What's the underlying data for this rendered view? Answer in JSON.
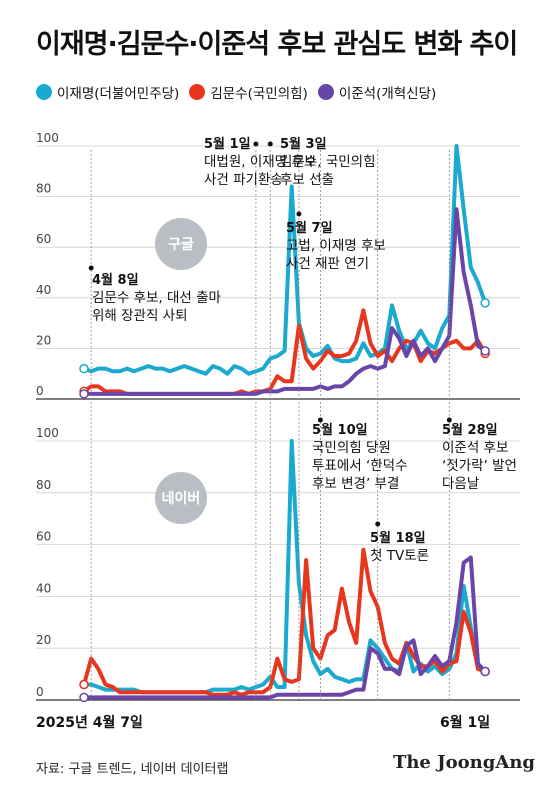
{
  "title": "이재명·김문수·이준석 후보 관심도 변화 추이",
  "legend": [
    {
      "label": "이재명(더불어민주당)",
      "color": "#1aa9cf"
    },
    {
      "label": "김문수(국민의힘)",
      "color": "#e8361d"
    },
    {
      "label": "이준석(개혁신당)",
      "color": "#6a45a8"
    }
  ],
  "x_start_label": "2025년 4월 7일",
  "x_end_label": "6월 1일",
  "footer": "자료: 구글 트렌드, 네이버 데이터랩",
  "logo": "The JoongAng",
  "chart_data": [
    {
      "type": "line",
      "panel_label": "구글",
      "x_start": "2025-04-07",
      "x_end": "2025-06-01",
      "ylim": [
        0,
        100
      ],
      "yticks": [
        0,
        20,
        40,
        60,
        80,
        100
      ],
      "series": [
        {
          "name": "이재명(더불어민주당)",
          "color": "#1aa9cf",
          "values": [
            12,
            11,
            12,
            12,
            11,
            11,
            12,
            11,
            12,
            13,
            12,
            12,
            11,
            12,
            13,
            12,
            11,
            10,
            13,
            12,
            10,
            13,
            12,
            10,
            11,
            12,
            16,
            17,
            19,
            84,
            30,
            20,
            17,
            18,
            21,
            16,
            15,
            15,
            16,
            22,
            17,
            18,
            20,
            37,
            27,
            20,
            22,
            27,
            22,
            20,
            28,
            33,
            100,
            75,
            52,
            46,
            38
          ]
        },
        {
          "name": "김문수(국민의힘)",
          "color": "#e8361d",
          "values": [
            3,
            5,
            5,
            3,
            3,
            3,
            2,
            2,
            2,
            2,
            2,
            2,
            2,
            2,
            2,
            2,
            2,
            2,
            2,
            2,
            2,
            2,
            3,
            2,
            3,
            3,
            4,
            9,
            7,
            7,
            29,
            16,
            12,
            15,
            19,
            17,
            17,
            18,
            23,
            35,
            22,
            17,
            19,
            15,
            20,
            23,
            22,
            15,
            19,
            18,
            20,
            22,
            23,
            20,
            20,
            23,
            18
          ]
        },
        {
          "name": "이준석(개혁신당)",
          "color": "#6a45a8",
          "values": [
            2,
            2,
            2,
            2,
            2,
            2,
            2,
            2,
            2,
            2,
            2,
            2,
            2,
            2,
            2,
            2,
            2,
            2,
            2,
            2,
            2,
            2,
            2,
            2,
            2,
            3,
            3,
            3,
            4,
            4,
            4,
            4,
            4,
            5,
            4,
            5,
            5,
            7,
            10,
            12,
            13,
            12,
            13,
            28,
            24,
            17,
            23,
            17,
            20,
            15,
            20,
            25,
            75,
            50,
            37,
            21,
            19
          ]
        }
      ]
    },
    {
      "type": "line",
      "panel_label": "네이버",
      "x_start": "2025-04-07",
      "x_end": "2025-06-01",
      "ylim": [
        0,
        100
      ],
      "yticks": [
        0,
        20,
        40,
        60,
        80,
        100
      ],
      "series": [
        {
          "name": "이재명(더불어민주당)",
          "color": "#1aa9cf",
          "values": [
            6,
            6,
            5,
            4,
            4,
            4,
            4,
            4,
            3,
            3,
            3,
            3,
            3,
            3,
            3,
            3,
            3,
            3,
            4,
            4,
            4,
            4,
            5,
            4,
            5,
            6,
            9,
            5,
            5,
            100,
            45,
            25,
            15,
            10,
            12,
            9,
            8,
            7,
            8,
            8,
            23,
            20,
            16,
            12,
            11,
            22,
            11,
            14,
            11,
            13,
            10,
            12,
            18,
            44,
            28,
            12,
            11
          ]
        },
        {
          "name": "김문수(국민의힘)",
          "color": "#e8361d",
          "values": [
            6,
            16,
            12,
            6,
            5,
            3,
            3,
            3,
            3,
            3,
            3,
            3,
            3,
            3,
            3,
            3,
            3,
            3,
            2,
            2,
            2,
            3,
            2,
            3,
            3,
            3,
            5,
            16,
            8,
            7,
            8,
            54,
            20,
            16,
            25,
            27,
            43,
            30,
            22,
            58,
            42,
            36,
            22,
            16,
            14,
            22,
            17,
            13,
            13,
            15,
            11,
            14,
            15,
            34,
            26,
            12,
            11
          ]
        },
        {
          "name": "이준석(개혁신당)",
          "color": "#6a45a8",
          "values": [
            1,
            1,
            1,
            1,
            1,
            1,
            1,
            1,
            1,
            1,
            1,
            1,
            1,
            1,
            1,
            1,
            1,
            1,
            1,
            1,
            1,
            1,
            1,
            1,
            1,
            1,
            1,
            2,
            2,
            2,
            2,
            2,
            2,
            2,
            2,
            2,
            2,
            3,
            4,
            4,
            20,
            18,
            12,
            12,
            10,
            21,
            23,
            10,
            13,
            17,
            13,
            15,
            30,
            53,
            55,
            14,
            11
          ]
        }
      ]
    }
  ],
  "annotations_top": [
    {
      "date": "5월 1일",
      "text": [
        "대법원, 이재명 후보",
        "사건 파기환송"
      ]
    },
    {
      "date": "5월 3일",
      "text": [
        "김문수, 국민의힘",
        "후보 선출"
      ]
    },
    {
      "date": "5월 7일",
      "text": [
        "고법, 이재명 후보",
        "사건 재판 연기"
      ]
    },
    {
      "date": "4월 8일",
      "text": [
        "김문수 후보, 대선 출마",
        "위해 장관직 사퇴"
      ]
    }
  ],
  "annotations_bottom": [
    {
      "date": "5월 10일",
      "text": [
        "국민의힘 당원",
        "투표에서 ‘한덕수",
        "후보 변경’ 부결"
      ]
    },
    {
      "date": "5월 28일",
      "text": [
        "이준석 후보",
        "‘젓가락’ 발언",
        "다음날"
      ]
    },
    {
      "date": "5월 18일",
      "text": [
        "첫 TV토론"
      ]
    }
  ]
}
